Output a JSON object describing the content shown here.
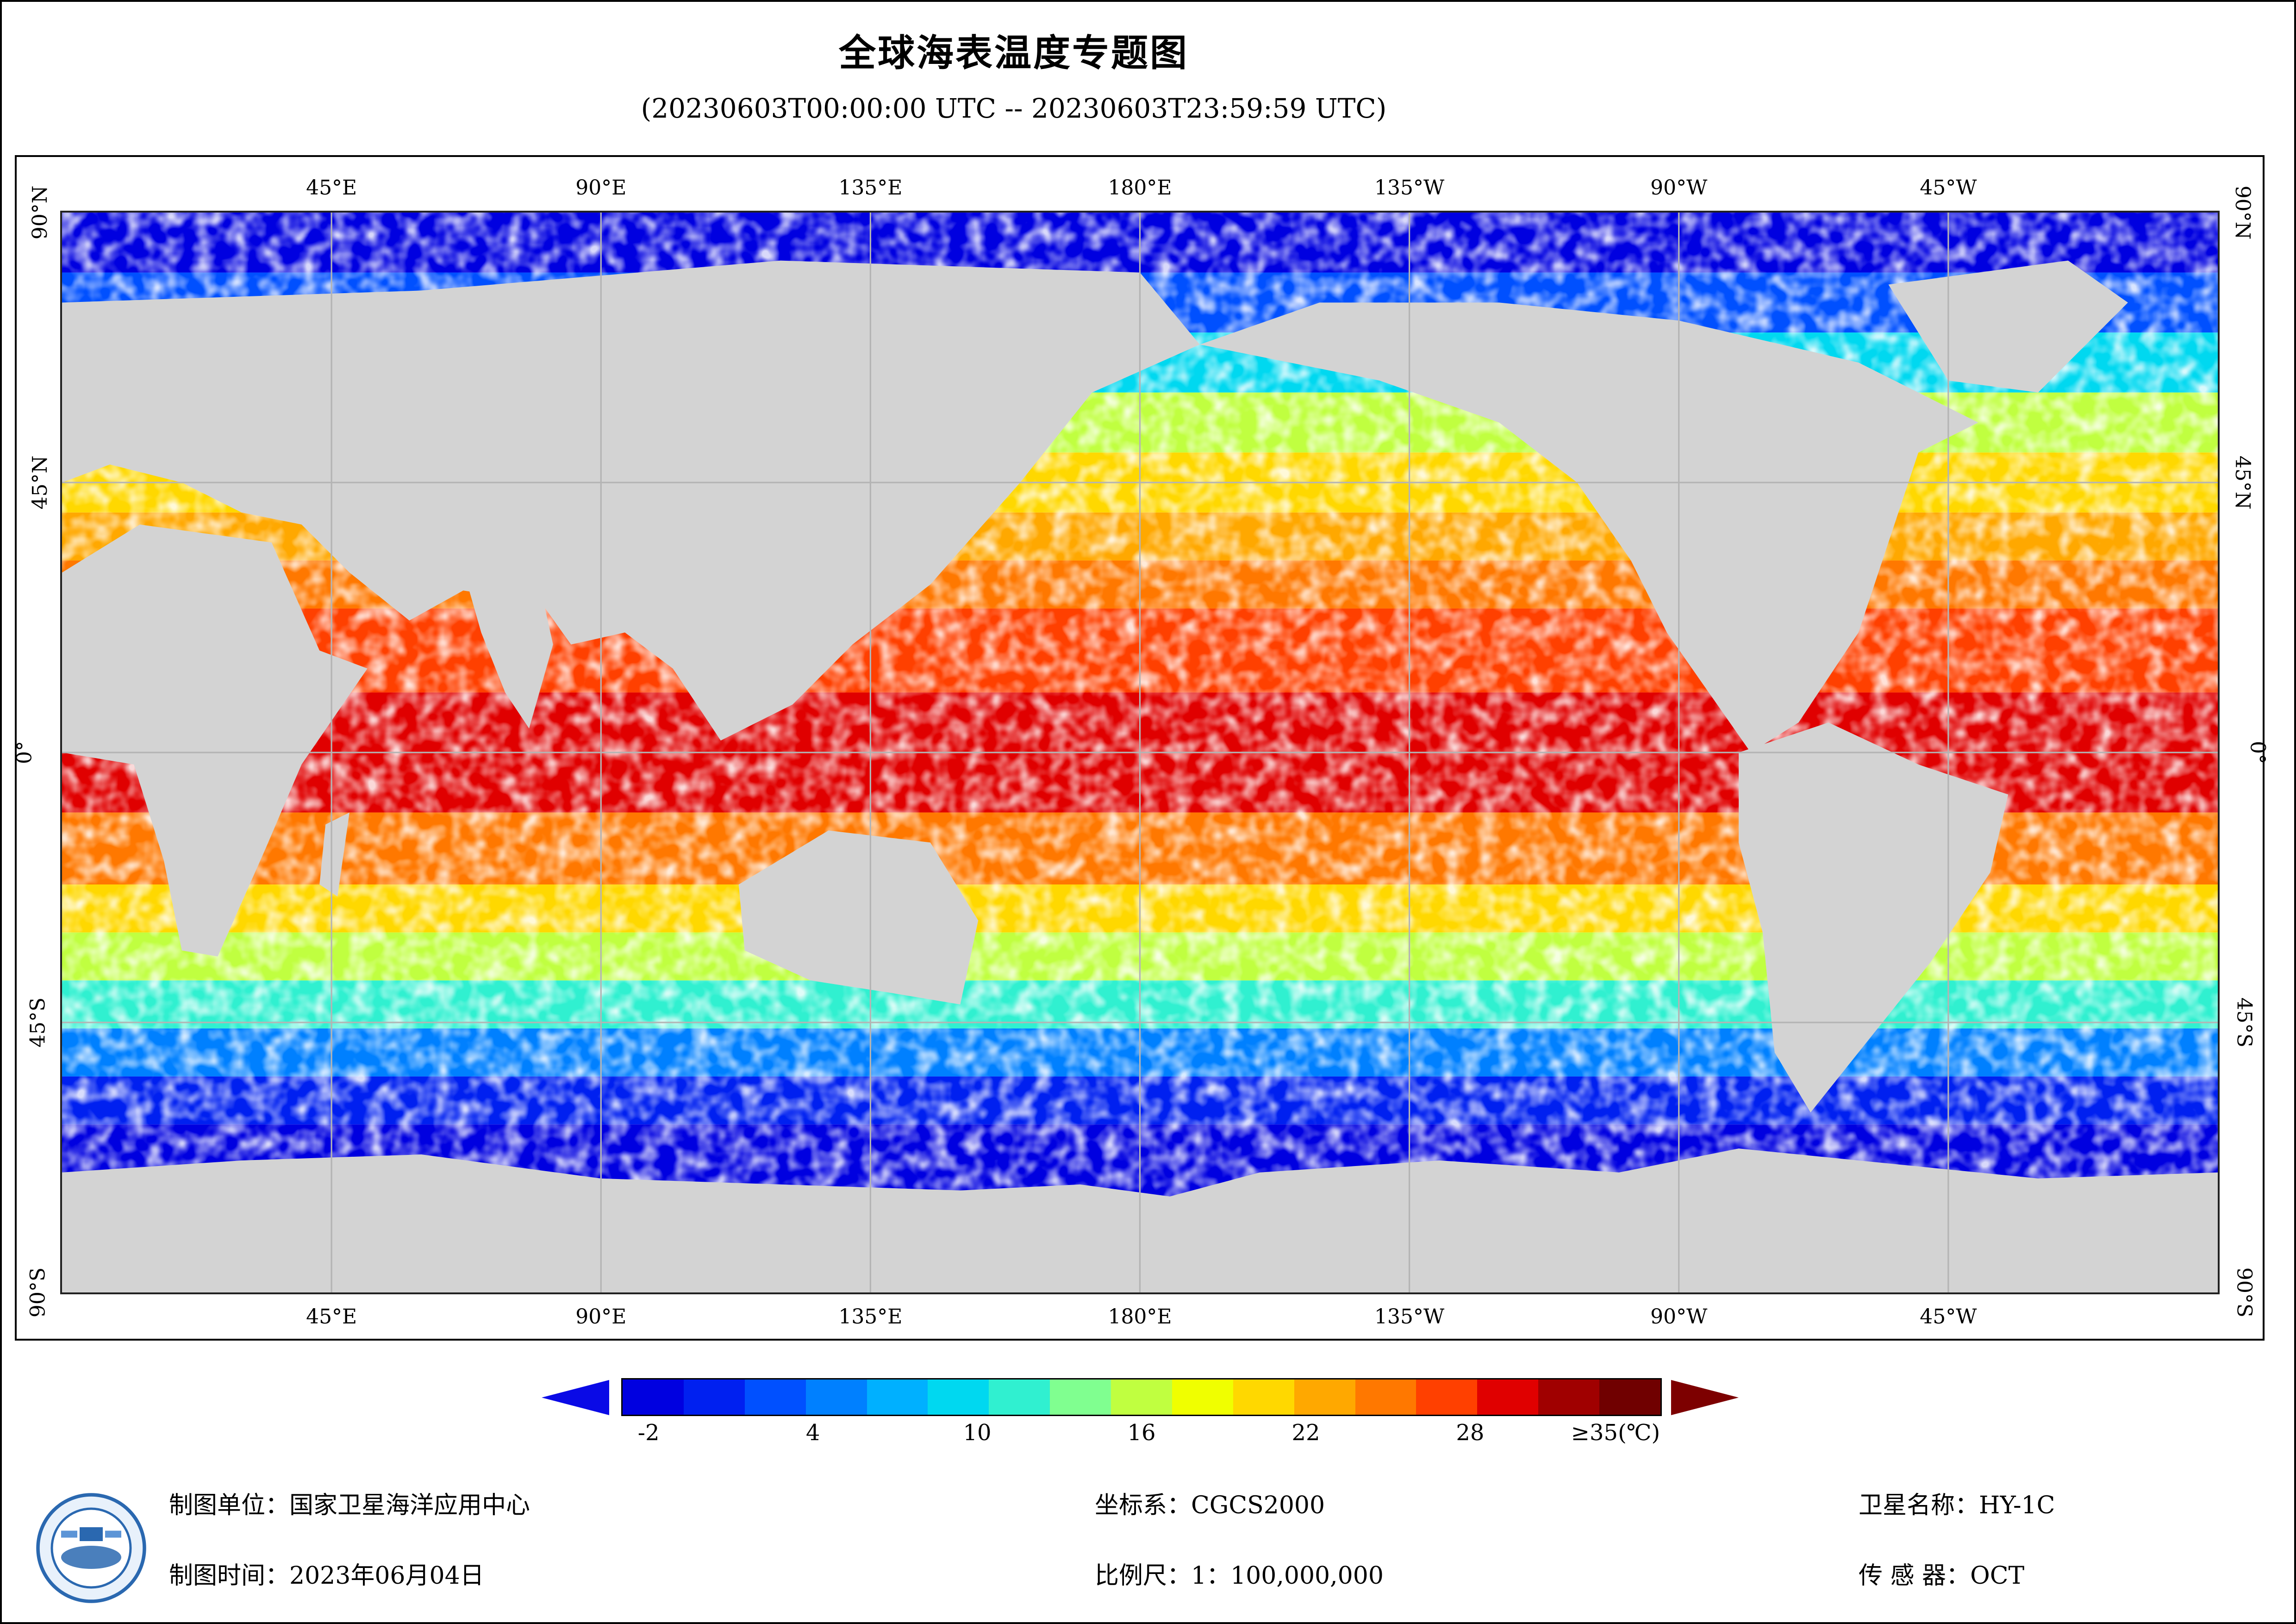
{
  "header": {
    "title": "全球海表温度专题图",
    "subtitle": "(20230603T00:00:00 UTC -- 20230603T23:59:59 UTC)"
  },
  "map": {
    "projection": "equirectangular",
    "extent": {
      "lon_min": 0,
      "lon_max": 360,
      "lat_min": -90,
      "lat_max": 90
    },
    "colors": {
      "land": "#d3d3d3",
      "no_data": "#ffffff",
      "grid": "#b4b4b4",
      "frame": "#000000"
    },
    "graticule": {
      "longitudes": [
        45,
        90,
        135,
        180,
        225,
        270,
        315
      ],
      "latitudes": [
        45,
        0,
        -45
      ]
    },
    "top_ticks": [
      "45°E",
      "90°E",
      "135°E",
      "180°E",
      "135°W",
      "90°W",
      "45°W"
    ],
    "bottom_ticks": [
      "45°E",
      "90°E",
      "135°E",
      "180°E",
      "135°W",
      "90°W",
      "45°W"
    ],
    "left_ticks": [
      "90°N",
      "45°N",
      "0°",
      "45°S",
      "90°S"
    ],
    "right_ticks": [
      "90°N",
      "45°N",
      "0°",
      "45°S",
      "90°S"
    ]
  },
  "legend": {
    "unit_label": "≥35(℃)",
    "tick_labels": [
      "-2",
      "4",
      "10",
      "16",
      "22",
      "28"
    ],
    "tick_values": [
      -2,
      4,
      10,
      16,
      22,
      28
    ],
    "range": [
      -3,
      35
    ],
    "colors": [
      "#0000e0",
      "#0020f0",
      "#0050ff",
      "#0080ff",
      "#00b0ff",
      "#00d8f0",
      "#30f0d0",
      "#80ff90",
      "#c0ff40",
      "#f0ff00",
      "#ffd800",
      "#ffa800",
      "#ff7800",
      "#ff4000",
      "#e00000",
      "#a00000",
      "#700000"
    ],
    "under_color": "#0a0ae6",
    "over_color": "#7d0000"
  },
  "footer": {
    "organization_label": "制图单位：",
    "organization": "国家卫星海洋应用中心",
    "date_label": "制图时间：",
    "date": "2023年06月04日",
    "crs_label": "坐标系：",
    "crs": "CGCS2000",
    "scale_label": "比例尺：",
    "scale": "1：100,000,000",
    "satellite_label": "卫星名称：",
    "satellite": "HY-1C",
    "sensor_label": "传 感 器：",
    "sensor": "OCT"
  }
}
